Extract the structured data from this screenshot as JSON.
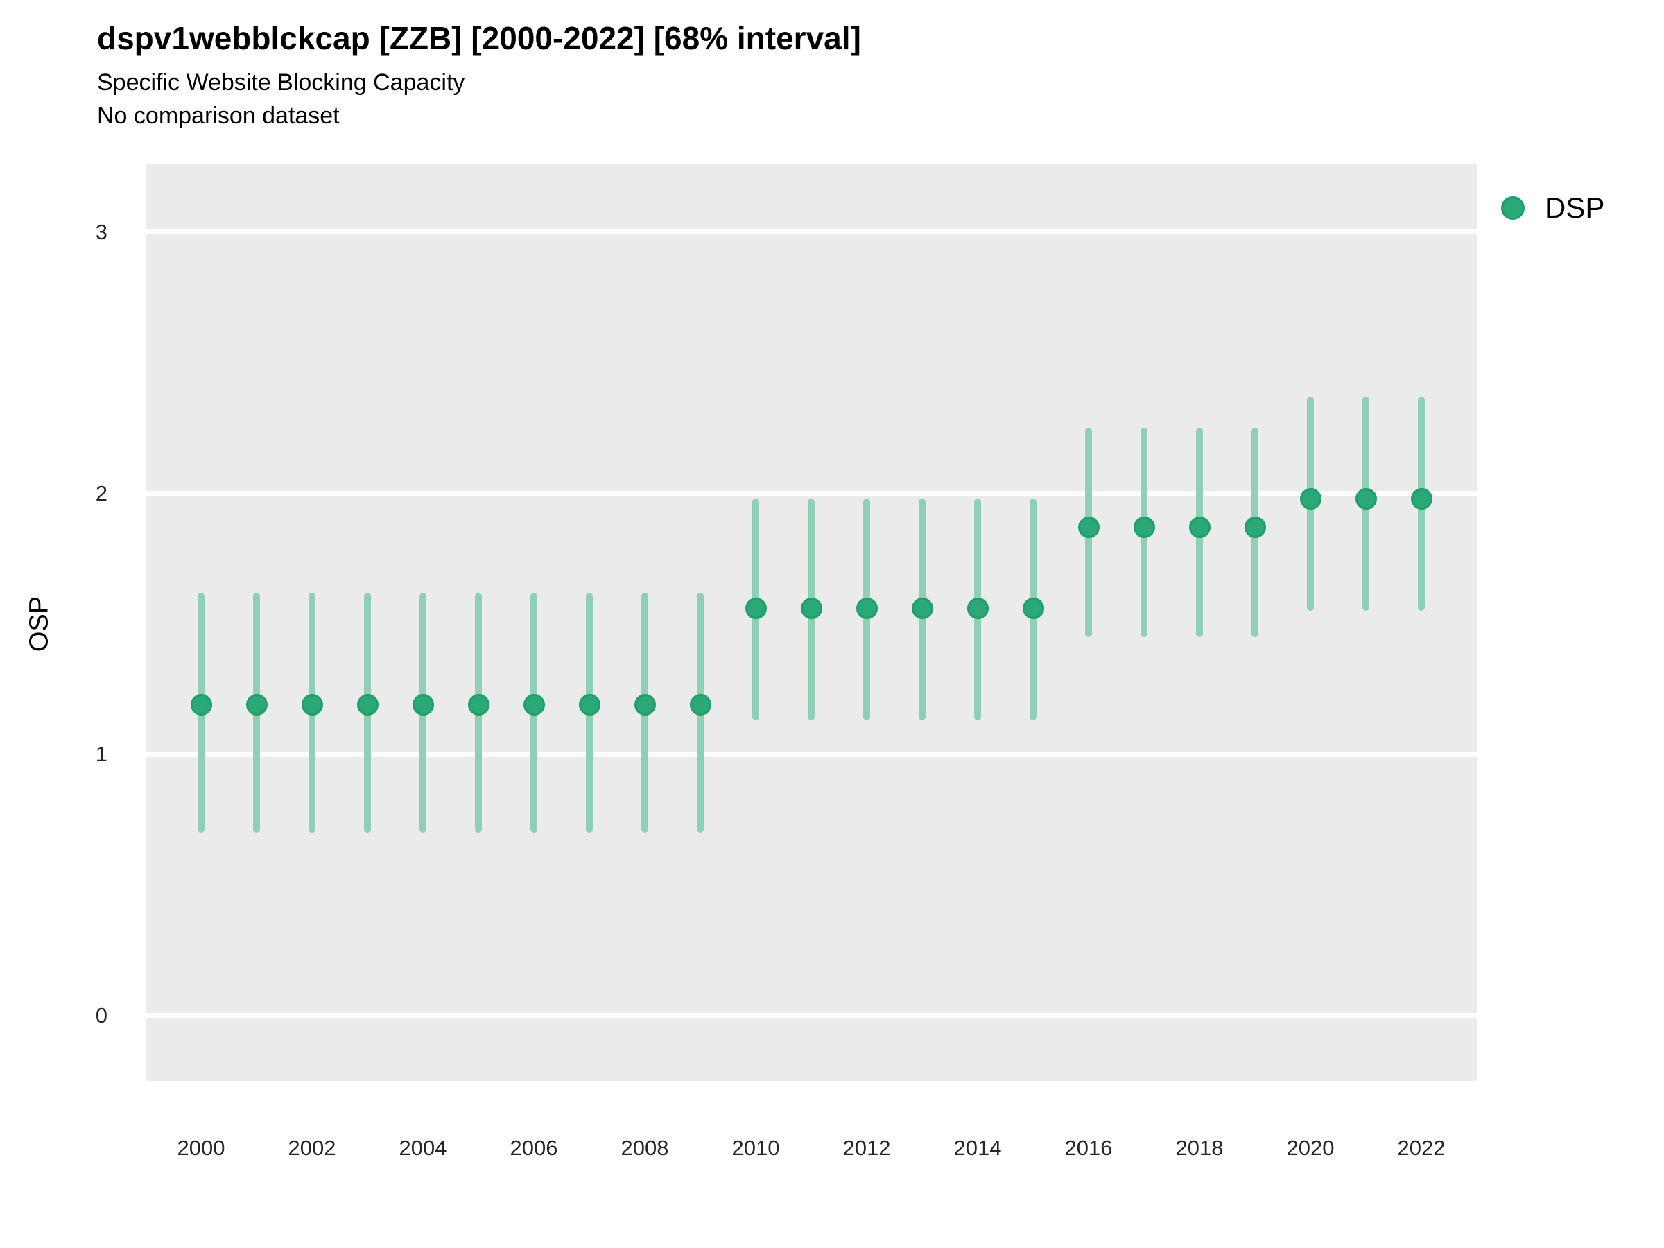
{
  "header": {
    "title": "dspv1webblckcap [ZZB] [2000-2022] [68% interval]",
    "subtitle": "Specific Website Blocking Capacity",
    "note": "No comparison dataset"
  },
  "legend": {
    "label": "DSP",
    "marker": "circle-icon",
    "position": "right"
  },
  "colors": {
    "point_fill": "#2aa877",
    "point_stroke": "#1e9f6b",
    "interval_bar": "#8fceb7",
    "plot_background": "#ebebeb",
    "gridline": "#ffffff",
    "tick_text": "#262626",
    "text": "#000000"
  },
  "chart_data": {
    "type": "scatter",
    "subtype": "pointrange",
    "title": "dspv1webblckcap [ZZB] [2000-2022] [68% interval]",
    "subtitle": "Specific Website Blocking Capacity",
    "note": "No comparison dataset",
    "interval": "68% interval",
    "xlabel": "",
    "ylabel": "OSP",
    "ylim": [
      -0.25,
      3.26
    ],
    "y_ticks": [
      0,
      1,
      2,
      3
    ],
    "x_tick_labels": [
      2000,
      2002,
      2004,
      2006,
      2008,
      2010,
      2012,
      2014,
      2016,
      2018,
      2020,
      2022
    ],
    "grid": "horizontal-major-only",
    "legend_position": "right",
    "x": [
      2000,
      2001,
      2002,
      2003,
      2004,
      2005,
      2006,
      2007,
      2008,
      2009,
      2010,
      2011,
      2012,
      2013,
      2014,
      2015,
      2016,
      2017,
      2018,
      2019,
      2020,
      2021,
      2022
    ],
    "series": [
      {
        "name": "DSP",
        "mid": [
          1.19,
          1.19,
          1.19,
          1.19,
          1.19,
          1.19,
          1.19,
          1.19,
          1.19,
          1.19,
          1.56,
          1.56,
          1.56,
          1.56,
          1.56,
          1.56,
          1.87,
          1.87,
          1.87,
          1.87,
          1.98,
          1.98,
          1.98
        ],
        "lower": [
          0.7,
          0.7,
          0.7,
          0.7,
          0.7,
          0.7,
          0.7,
          0.7,
          0.7,
          0.7,
          1.13,
          1.13,
          1.13,
          1.13,
          1.13,
          1.13,
          1.45,
          1.45,
          1.45,
          1.45,
          1.55,
          1.55,
          1.55
        ],
        "upper": [
          1.62,
          1.62,
          1.62,
          1.62,
          1.62,
          1.62,
          1.62,
          1.62,
          1.62,
          1.62,
          1.98,
          1.98,
          1.98,
          1.98,
          1.98,
          1.98,
          2.25,
          2.25,
          2.25,
          2.25,
          2.37,
          2.37,
          2.37
        ]
      }
    ]
  }
}
